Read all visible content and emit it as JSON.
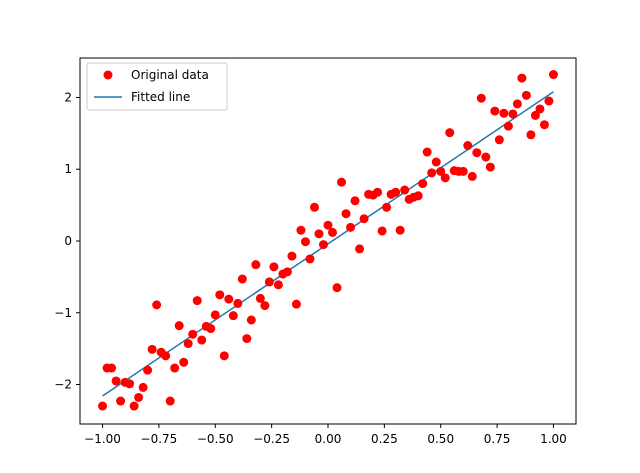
{
  "chart_data": {
    "type": "scatter",
    "title": "",
    "xlabel": "",
    "ylabel": "",
    "xlim": [
      -1.1,
      1.1
    ],
    "ylim": [
      -2.55,
      2.55
    ],
    "xticks": [
      -1.0,
      -0.75,
      -0.5,
      -0.25,
      0.0,
      0.25,
      0.5,
      0.75,
      1.0
    ],
    "xtick_labels": [
      "−1.00",
      "−0.75",
      "−0.50",
      "−0.25",
      "0.00",
      "0.25",
      "0.50",
      "0.75",
      "1.00"
    ],
    "yticks": [
      -2,
      -1,
      0,
      1,
      2
    ],
    "ytick_labels": [
      "−2",
      "−1",
      "0",
      "1",
      "2"
    ],
    "grid": false,
    "legend_position": "top-left",
    "series": [
      {
        "name": "Original data",
        "kind": "scatter",
        "color": "#ff0000",
        "x": [
          -1.0,
          -0.98,
          -0.96,
          -0.94,
          -0.92,
          -0.9,
          -0.88,
          -0.86,
          -0.84,
          -0.82,
          -0.8,
          -0.78,
          -0.76,
          -0.74,
          -0.72,
          -0.7,
          -0.68,
          -0.66,
          -0.64,
          -0.62,
          -0.6,
          -0.58,
          -0.56,
          -0.54,
          -0.52,
          -0.5,
          -0.48,
          -0.46,
          -0.44,
          -0.42,
          -0.4,
          -0.38,
          -0.36,
          -0.34,
          -0.32,
          -0.3,
          -0.28,
          -0.26,
          -0.24,
          -0.22,
          -0.2,
          -0.18,
          -0.16,
          -0.14,
          -0.12,
          -0.1,
          -0.08,
          -0.06,
          -0.04,
          -0.02,
          0.0,
          0.02,
          0.04,
          0.06,
          0.08,
          0.1,
          0.12,
          0.14,
          0.16,
          0.18,
          0.2,
          0.22,
          0.24,
          0.26,
          0.28,
          0.3,
          0.32,
          0.34,
          0.36,
          0.38,
          0.4,
          0.42,
          0.44,
          0.46,
          0.48,
          0.5,
          0.52,
          0.54,
          0.56,
          0.58,
          0.6,
          0.62,
          0.64,
          0.66,
          0.68,
          0.7,
          0.72,
          0.74,
          0.76,
          0.78,
          0.8,
          0.82,
          0.84,
          0.86,
          0.88,
          0.9,
          0.92,
          0.94,
          0.96,
          0.98,
          1.0
        ],
        "y": [
          -2.3,
          -1.77,
          -1.77,
          -1.95,
          -2.23,
          -1.97,
          -1.99,
          -2.3,
          -2.18,
          -2.04,
          -1.8,
          -1.51,
          -0.89,
          -1.55,
          -1.6,
          -2.23,
          -1.77,
          -1.18,
          -1.69,
          -1.43,
          -1.3,
          -0.83,
          -1.38,
          -1.19,
          -1.22,
          -1.03,
          -0.75,
          -1.6,
          -0.81,
          -1.04,
          -0.87,
          -0.53,
          -1.36,
          -1.1,
          -0.33,
          -0.8,
          -0.9,
          -0.57,
          -0.36,
          -0.61,
          -0.46,
          -0.43,
          -0.21,
          -0.88,
          0.15,
          -0.01,
          -0.25,
          0.47,
          0.1,
          -0.05,
          0.22,
          0.12,
          -0.65,
          0.82,
          0.38,
          0.19,
          0.56,
          -0.11,
          0.31,
          0.65,
          0.64,
          0.68,
          0.14,
          0.47,
          0.65,
          0.68,
          0.15,
          0.71,
          0.58,
          0.61,
          0.63,
          0.8,
          1.24,
          0.95,
          1.1,
          0.97,
          0.88,
          1.51,
          0.98,
          0.97,
          0.97,
          1.33,
          0.9,
          1.23,
          1.99,
          1.17,
          1.03,
          1.81,
          1.41,
          1.78,
          1.6,
          1.77,
          1.91,
          2.27,
          2.03,
          1.48,
          1.75,
          1.84,
          1.62,
          1.95,
          2.32
        ]
      },
      {
        "name": "Fitted line",
        "kind": "line",
        "color": "#1f77b4",
        "x": [
          -1.0,
          1.0
        ],
        "y": [
          -2.16,
          2.08
        ]
      }
    ]
  }
}
